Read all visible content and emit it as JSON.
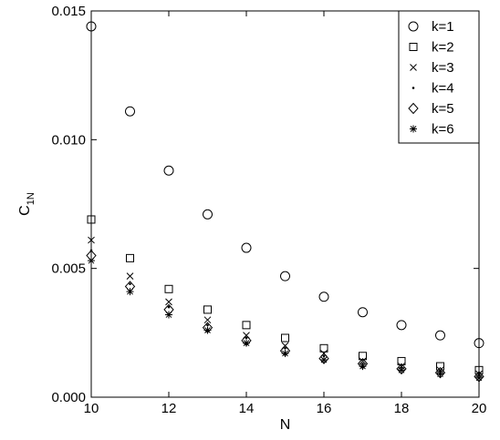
{
  "chart_data": {
    "type": "scatter",
    "xlabel": "N",
    "ylabel": {
      "main": "C",
      "sub": "1N"
    },
    "xlim": [
      10,
      20
    ],
    "ylim": [
      0.0,
      0.015
    ],
    "xticks": [
      10,
      12,
      14,
      16,
      18,
      20
    ],
    "xtick_labels": [
      "10",
      "12",
      "14",
      "16",
      "18",
      "20"
    ],
    "yticks": [
      0.0,
      0.005,
      0.01,
      0.015
    ],
    "ytick_labels": [
      "0.000",
      "0.005",
      "0.010",
      "0.015"
    ],
    "grid": false,
    "legend_position": "top-right",
    "x": [
      10,
      11,
      12,
      13,
      14,
      15,
      16,
      17,
      18,
      19,
      20
    ],
    "series": [
      {
        "name": "k=1",
        "marker": "circle",
        "values": [
          0.0144,
          0.0111,
          0.0088,
          0.0071,
          0.0058,
          0.0047,
          0.0039,
          0.0033,
          0.0028,
          0.0024,
          0.0021
        ]
      },
      {
        "name": "k=2",
        "marker": "square",
        "values": [
          0.0069,
          0.0054,
          0.0042,
          0.0034,
          0.0028,
          0.0023,
          0.0019,
          0.0016,
          0.0014,
          0.0012,
          0.00105
        ]
      },
      {
        "name": "k=3",
        "marker": "x",
        "values": [
          0.0061,
          0.0047,
          0.0037,
          0.003,
          0.0024,
          0.002,
          0.0017,
          0.0014,
          0.0012,
          0.00105,
          0.0009
        ]
      },
      {
        "name": "k=4",
        "marker": "dot",
        "values": [
          0.0057,
          0.0044,
          0.0035,
          0.0028,
          0.0023,
          0.0019,
          0.0016,
          0.0013,
          0.00115,
          0.001,
          0.00085
        ]
      },
      {
        "name": "k=5",
        "marker": "diamond",
        "values": [
          0.0055,
          0.0043,
          0.0034,
          0.0027,
          0.0022,
          0.0018,
          0.0015,
          0.0013,
          0.0011,
          0.00095,
          0.0008
        ]
      },
      {
        "name": "k=6",
        "marker": "asterisk",
        "values": [
          0.0053,
          0.0041,
          0.0032,
          0.0026,
          0.0021,
          0.0017,
          0.00145,
          0.0012,
          0.00105,
          0.0009,
          0.00075
        ]
      }
    ]
  }
}
